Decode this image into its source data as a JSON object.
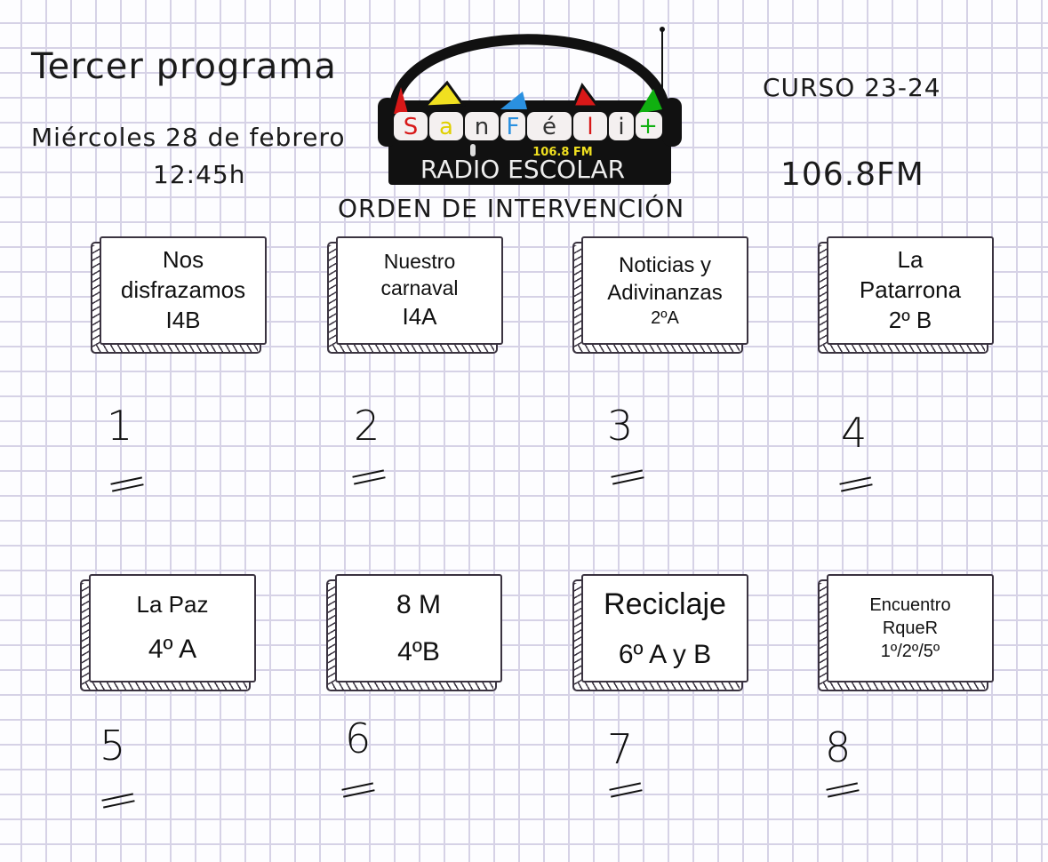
{
  "header": {
    "title": "Tercer programa",
    "date": "Miércoles 28 de febrero",
    "time": "12:45h",
    "course": "CURSO 23-24",
    "frequency": "106.8FM",
    "subtitle": "ORDEN DE INTERVENCIÓN"
  },
  "logo": {
    "letters": [
      "S",
      "a",
      "n",
      "F",
      "é",
      "l",
      "i",
      "+"
    ],
    "frequency": "106.8 FM",
    "name": "RADIO ESCOLAR",
    "colors": {
      "red": "#d81818",
      "yellow": "#f0e020",
      "blue": "#2a90e0",
      "green": "#10b010",
      "black": "#111111"
    }
  },
  "items": [
    {
      "number": "1",
      "lines": [
        "Nos",
        "disfrazamos",
        "I4B"
      ]
    },
    {
      "number": "2",
      "lines": [
        "Nuestro",
        "carnaval",
        "I4A"
      ]
    },
    {
      "number": "3",
      "lines": [
        "Noticias y",
        "Adivinanzas",
        "2ºA"
      ]
    },
    {
      "number": "4",
      "lines": [
        "La",
        "Patarrona",
        "2º B"
      ]
    },
    {
      "number": "5",
      "lines": [
        "La Paz",
        "4º A"
      ]
    },
    {
      "number": "6",
      "lines": [
        "8 M",
        "4ºB"
      ]
    },
    {
      "number": "7",
      "lines": [
        "Reciclaje",
        "6º A y B"
      ]
    },
    {
      "number": "8",
      "lines": [
        "Encuentro",
        "RqueR",
        "1º/2º/5º"
      ]
    }
  ]
}
